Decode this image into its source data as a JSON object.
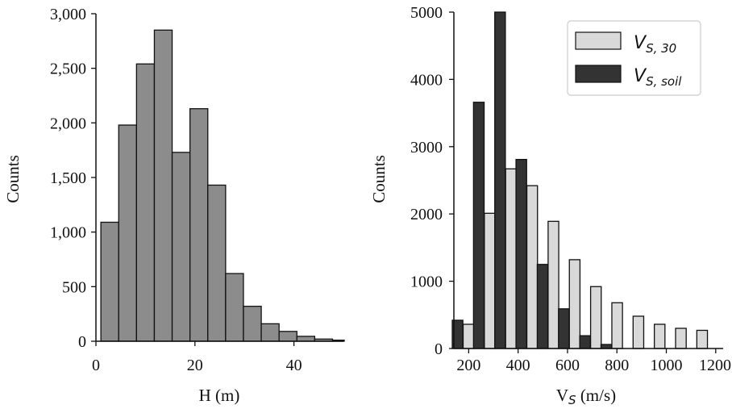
{
  "chart_data": [
    {
      "type": "bar",
      "xlabel": "H (m)",
      "ylabel": "Counts",
      "xlim": [
        0,
        50
      ],
      "ylim": [
        0,
        3000
      ],
      "xticks": [
        0,
        20,
        40
      ],
      "xtick_labels": [
        "0",
        "20",
        "40"
      ],
      "yticks": [
        0,
        500,
        1000,
        1500,
        2000,
        2500,
        3000
      ],
      "ytick_labels": [
        "0",
        "500",
        "1,000",
        "1,500",
        "2,000",
        "2,500",
        "3,000"
      ],
      "bin_edges": [
        1,
        4.6,
        8.2,
        11.8,
        15.4,
        19.0,
        22.6,
        26.2,
        29.8,
        33.4,
        37.0,
        40.6,
        44.2,
        47.8,
        51.4
      ],
      "values": [
        1090,
        1980,
        2540,
        2850,
        1730,
        2130,
        1430,
        620,
        320,
        160,
        90,
        45,
        20,
        10
      ],
      "color": "#8c8c8c",
      "grid": false
    },
    {
      "type": "bar",
      "xlabel": "V",
      "xlabel_sub": "S",
      "xlabel_suffix": " (m/s)",
      "ylabel": "Counts",
      "xlim": [
        140,
        1230
      ],
      "ylim": [
        0,
        5000
      ],
      "xticks": [
        200,
        400,
        600,
        800,
        1000,
        1200
      ],
      "xtick_labels": [
        "200",
        "400",
        "600",
        "800",
        "1000",
        "1200"
      ],
      "yticks": [
        0,
        1000,
        2000,
        3000,
        4000,
        5000
      ],
      "ytick_labels": [
        "0",
        "1000",
        "2000",
        "3000",
        "4000",
        "5000"
      ],
      "grid": false,
      "legend_position": "top-right",
      "series": [
        {
          "name": "V_{S,30}",
          "legend_main": "V",
          "legend_sub": "S, 30",
          "color": "#d9d9d9",
          "x": [
            199,
            285,
            371,
            457,
            543,
            629,
            715,
            801,
            887,
            973,
            1059,
            1145
          ],
          "values": [
            360,
            2010,
            2670,
            2420,
            1890,
            1320,
            920,
            680,
            480,
            360,
            300,
            270
          ]
        },
        {
          "name": "V_{S,soil}",
          "legend_main": "V",
          "legend_sub": "S, soil",
          "color": "#333333",
          "x": [
            155,
            241,
            327,
            413,
            499,
            585,
            671,
            757
          ],
          "values": [
            420,
            3660,
            5000,
            2810,
            1250,
            590,
            190,
            60
          ]
        }
      ]
    }
  ]
}
